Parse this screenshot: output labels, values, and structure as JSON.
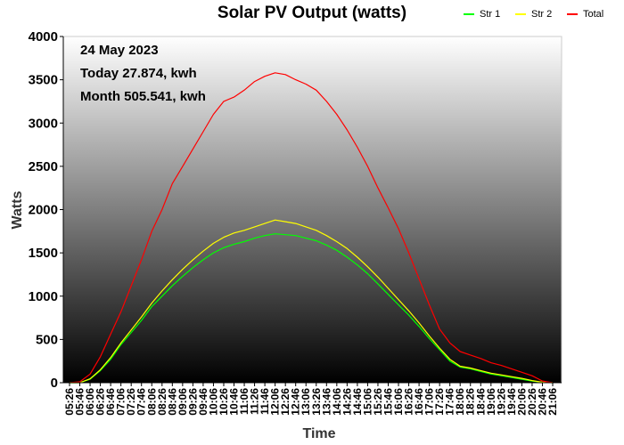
{
  "chart_data": {
    "type": "line",
    "title": "Solar PV Output (watts)",
    "xlabel": "Time",
    "ylabel": "Watts",
    "ylim": [
      0,
      4000
    ],
    "yticks": [
      0,
      500,
      1000,
      1500,
      2000,
      2500,
      3000,
      3500,
      4000
    ],
    "grid": false,
    "legend_position": "top-right",
    "annotations": [
      "24 May 2023",
      "Today 27.874, kwh",
      "Month 505.541, kwh"
    ],
    "x": [
      "05:26",
      "05:46",
      "06:06",
      "06:26",
      "06:46",
      "07:06",
      "07:26",
      "07:46",
      "08:06",
      "08:26",
      "08:46",
      "09:06",
      "09:26",
      "09:46",
      "10:06",
      "10:26",
      "10:46",
      "11:06",
      "11:26",
      "11:46",
      "12:06",
      "12:26",
      "12:46",
      "13:06",
      "13:26",
      "13:46",
      "14:06",
      "14:26",
      "14:46",
      "15:06",
      "15:26",
      "15:46",
      "16:06",
      "16:26",
      "16:46",
      "17:06",
      "17:26",
      "17:46",
      "18:06",
      "18:26",
      "18:46",
      "19:06",
      "19:26",
      "19:46",
      "20:06",
      "20:26",
      "20:46",
      "21:06"
    ],
    "series": [
      {
        "name": "Str 1",
        "color": "#00ff00",
        "values": [
          0,
          0,
          40,
          140,
          270,
          440,
          580,
          720,
          880,
          1000,
          1120,
          1230,
          1330,
          1420,
          1500,
          1560,
          1600,
          1630,
          1670,
          1700,
          1720,
          1710,
          1700,
          1670,
          1640,
          1590,
          1530,
          1450,
          1360,
          1260,
          1140,
          1020,
          900,
          780,
          650,
          510,
          380,
          250,
          180,
          160,
          130,
          100,
          80,
          60,
          40,
          20,
          5,
          0
        ]
      },
      {
        "name": "Str 2",
        "color": "#ffff00",
        "values": [
          0,
          0,
          45,
          150,
          290,
          460,
          610,
          760,
          920,
          1060,
          1190,
          1310,
          1420,
          1520,
          1610,
          1680,
          1730,
          1760,
          1800,
          1840,
          1880,
          1860,
          1840,
          1800,
          1760,
          1700,
          1630,
          1550,
          1450,
          1340,
          1220,
          1090,
          960,
          830,
          690,
          540,
          400,
          270,
          190,
          170,
          140,
          110,
          90,
          70,
          50,
          25,
          5,
          0
        ]
      },
      {
        "name": "Total",
        "color": "#ff0000",
        "values": [
          0,
          10,
          100,
          300,
          560,
          820,
          1120,
          1420,
          1750,
          2000,
          2300,
          2500,
          2700,
          2900,
          3100,
          3250,
          3300,
          3380,
          3480,
          3540,
          3580,
          3560,
          3500,
          3450,
          3380,
          3250,
          3100,
          2920,
          2720,
          2500,
          2250,
          2020,
          1780,
          1500,
          1200,
          900,
          620,
          460,
          360,
          320,
          280,
          230,
          200,
          160,
          120,
          80,
          20,
          0
        ]
      }
    ]
  }
}
